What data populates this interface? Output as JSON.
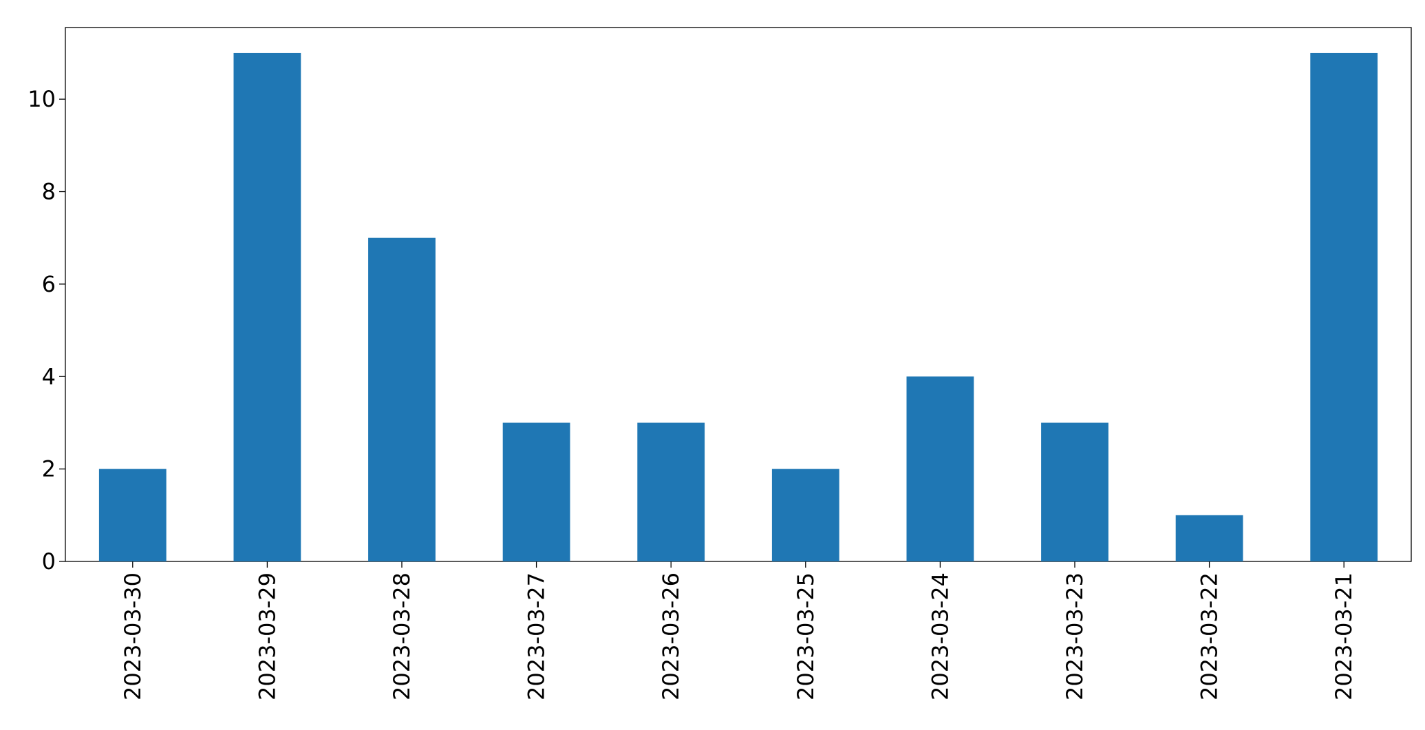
{
  "chart_data": {
    "type": "bar",
    "categories": [
      "2023-03-30",
      "2023-03-29",
      "2023-03-28",
      "2023-03-27",
      "2023-03-26",
      "2023-03-25",
      "2023-03-24",
      "2023-03-23",
      "2023-03-22",
      "2023-03-21"
    ],
    "values": [
      2,
      11,
      7,
      3,
      3,
      2,
      4,
      3,
      1,
      11
    ],
    "color": "#1f77b4",
    "ylim": [
      0,
      11.55
    ],
    "yticks": [
      0,
      2,
      4,
      6,
      8,
      10
    ],
    "grid": false
  }
}
